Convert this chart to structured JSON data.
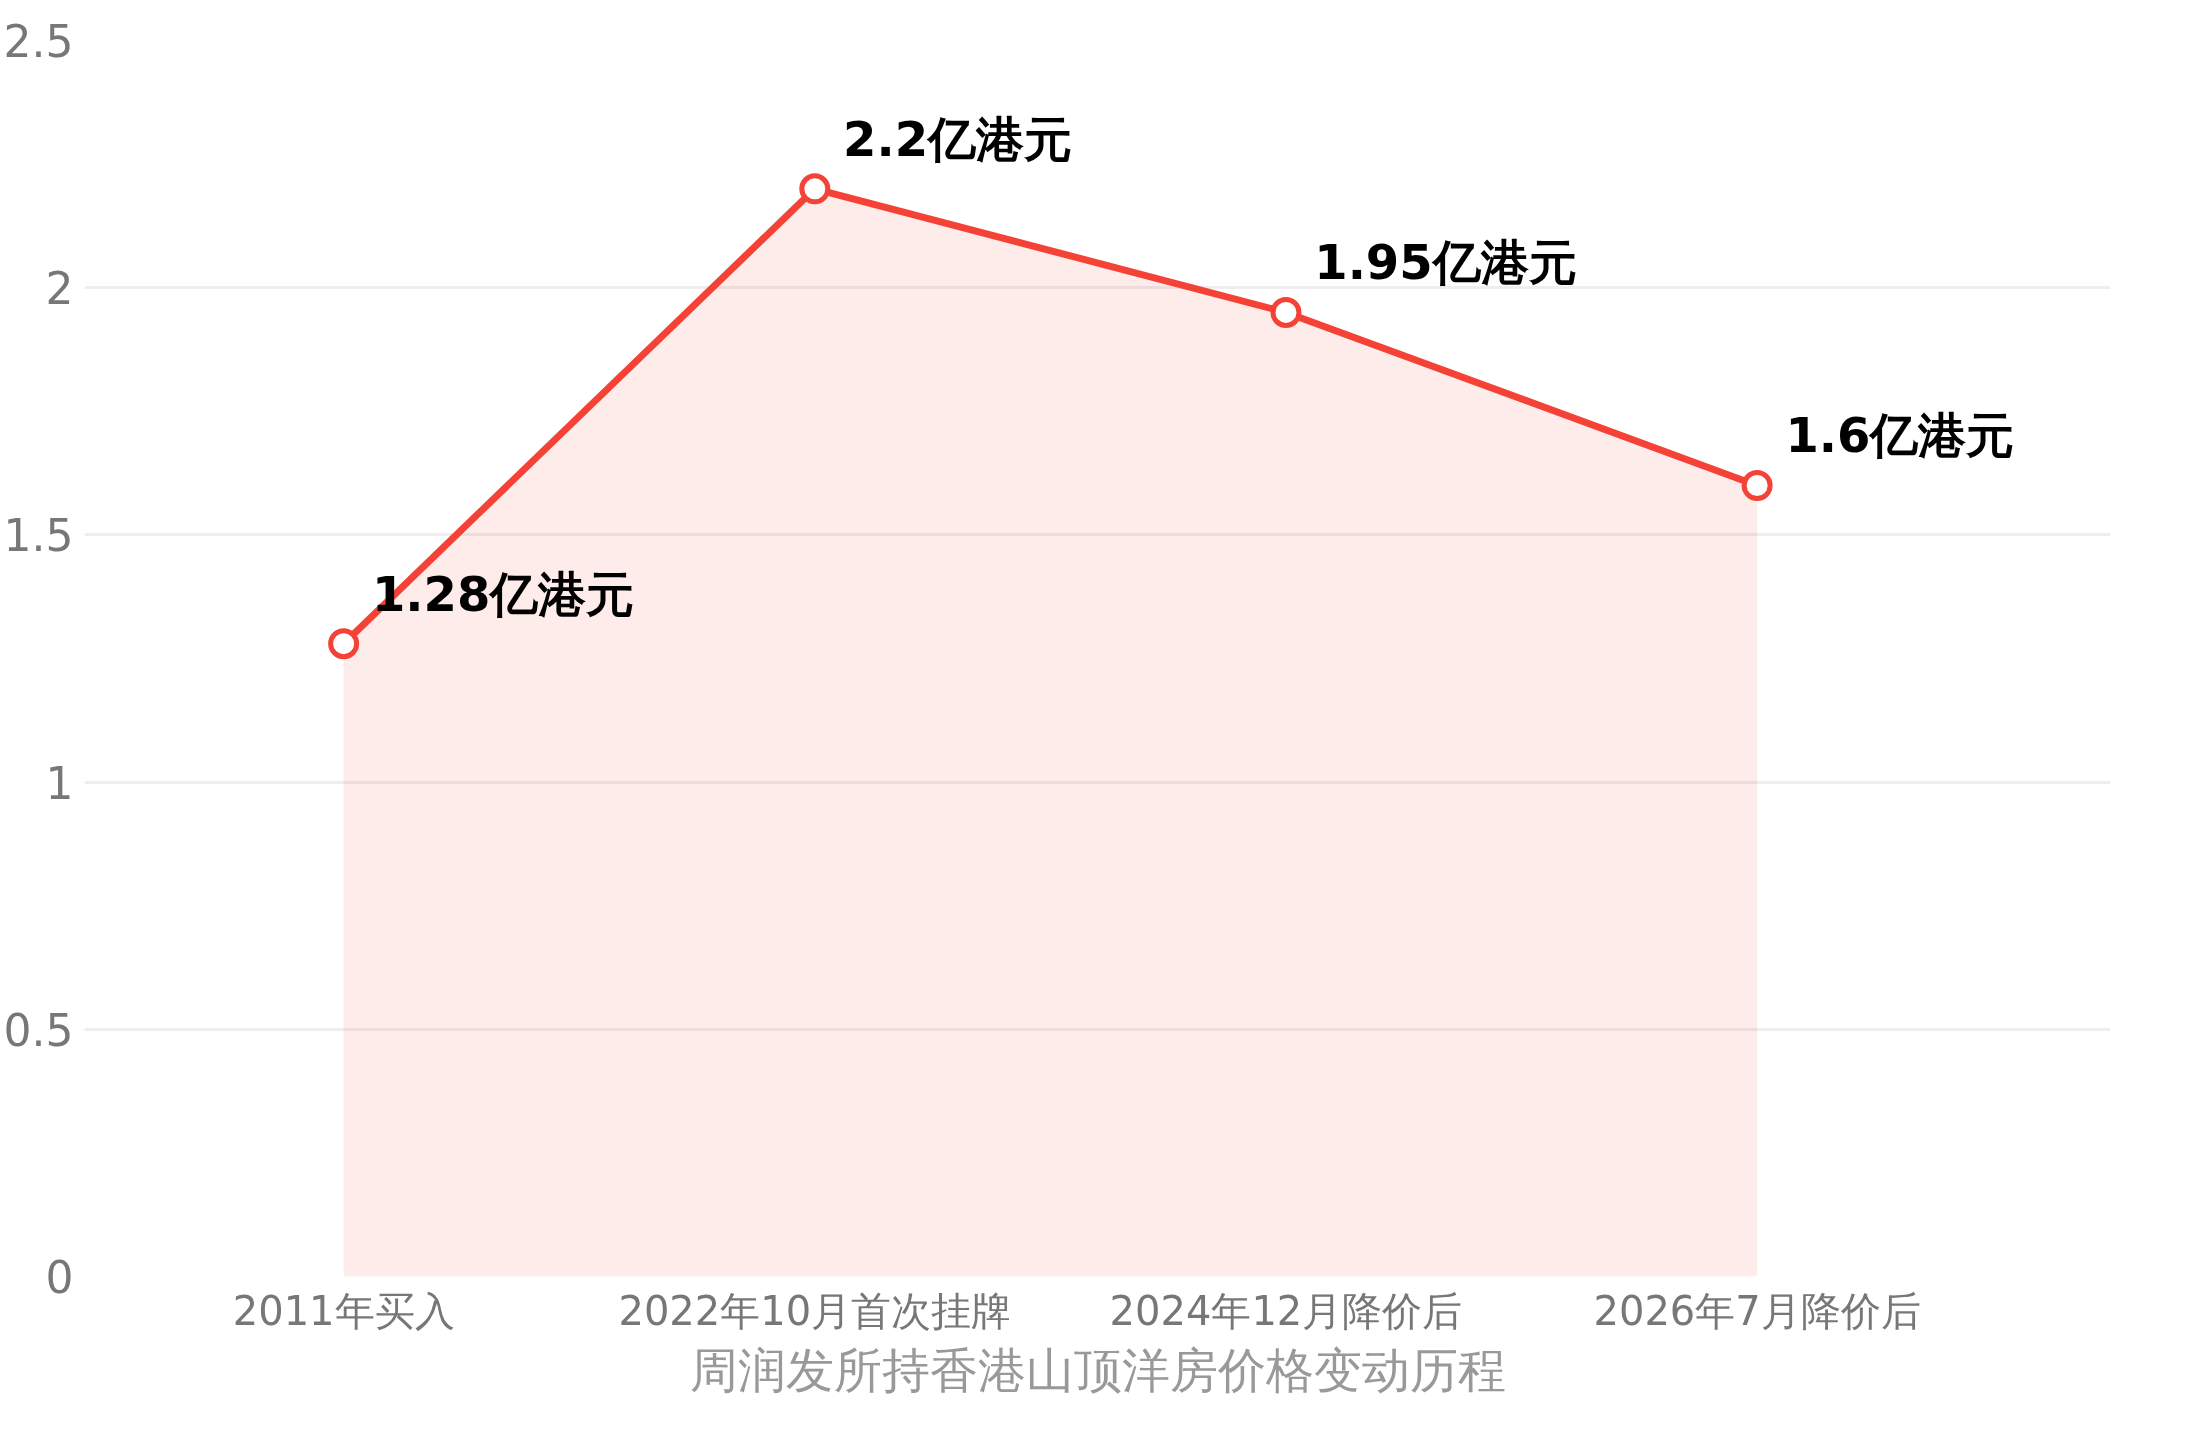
{
  "chart_data": {
    "type": "area",
    "xlabel": "周润发所持香港山顶洋房价格变动历程",
    "categories": [
      "2011年买入",
      "2022年10月首次挂牌",
      "2024年12月降价后",
      "2026年7月降价后"
    ],
    "series": [
      {
        "color": "#f44336",
        "values": [
          1.28,
          2.2,
          1.95,
          1.6
        ],
        "value_labels": [
          "1.28亿港元",
          "2.2亿港元",
          "1.95亿港元",
          "1.6亿港元"
        ]
      }
    ],
    "ylim": [
      0,
      2.5
    ],
    "yticks": [
      0,
      0.5,
      1,
      1.5,
      2,
      2.5
    ],
    "grid": "y",
    "marker": "circle",
    "line_style": "solid"
  }
}
